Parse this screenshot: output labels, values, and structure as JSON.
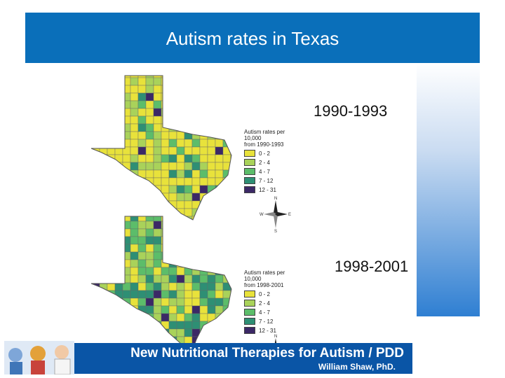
{
  "slide": {
    "title": "Autism rates in Texas",
    "period1": "1990-1993",
    "period2": "1998-2001"
  },
  "maps": [
    {
      "period_text": "from 1990-1993",
      "legend_title": "Autism rates per 10,000",
      "legend": [
        {
          "label": "0 - 2",
          "color": "#e8e23b"
        },
        {
          "label": "2 - 4",
          "color": "#a9d25a"
        },
        {
          "label": "4 - 7",
          "color": "#5cbd6a"
        },
        {
          "label": "7 - 12",
          "color": "#2e8f74"
        },
        {
          "label": "12 - 31",
          "color": "#3b2866"
        }
      ]
    },
    {
      "period_text": "from 1998-2001",
      "legend_title": "Autism rates per 10,000",
      "legend": [
        {
          "label": "0 - 2",
          "color": "#e8e23b"
        },
        {
          "label": "2 - 4",
          "color": "#a9d25a"
        },
        {
          "label": "4 - 7",
          "color": "#5cbd6a"
        },
        {
          "label": "7 - 12",
          "color": "#2e8f74"
        },
        {
          "label": "12 - 31",
          "color": "#3b2866"
        }
      ]
    }
  ],
  "compass": {
    "n": "N",
    "s": "S",
    "e": "E",
    "w": "W"
  },
  "footer": {
    "title": "New Nutritional Therapies for Autism / PDD",
    "author": "William Shaw, PhD."
  },
  "colors": {
    "header": "#0a6fba",
    "footer": "#0a55a6",
    "map_outline": "#555555"
  }
}
